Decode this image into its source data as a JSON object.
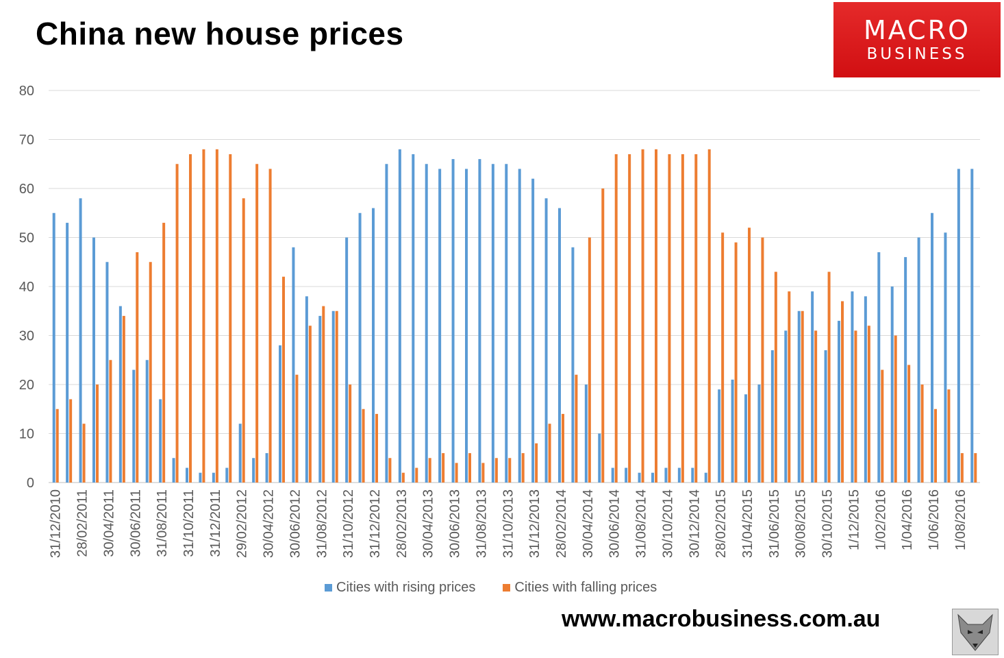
{
  "title": "China new house prices",
  "logo": {
    "line1": "MACRO",
    "line2": "BUSINESS",
    "color": "#d91417"
  },
  "website": "www.macrobusiness.com.au",
  "fox_icon": "fox-head-icon",
  "chart_data": {
    "type": "bar",
    "ylim": [
      0,
      80
    ],
    "yticks": [
      0,
      10,
      20,
      30,
      40,
      50,
      60,
      70,
      80
    ],
    "grid": true,
    "legend_position": "bottom",
    "categories": [
      "31/12/2010",
      "31/01/2011",
      "28/02/2011",
      "31/03/2011",
      "30/04/2011",
      "31/05/2011",
      "30/06/2011",
      "31/07/2011",
      "31/08/2011",
      "30/09/2011",
      "31/10/2011",
      "30/11/2011",
      "31/12/2011",
      "31/01/2012",
      "29/02/2012",
      "31/03/2012",
      "30/04/2012",
      "31/05/2012",
      "30/06/2012",
      "31/07/2012",
      "31/08/2012",
      "30/09/2012",
      "31/10/2012",
      "30/11/2012",
      "31/12/2012",
      "31/01/2013",
      "28/02/2013",
      "31/03/2013",
      "30/04/2013",
      "31/05/2013",
      "30/06/2013",
      "31/07/2013",
      "31/08/2013",
      "30/09/2013",
      "31/10/2013",
      "30/11/2013",
      "31/12/2013",
      "31/01/2014",
      "28/02/2014",
      "31/03/2014",
      "30/04/2014",
      "31/05/2014",
      "30/06/2014",
      "31/07/2014",
      "31/08/2014",
      "30/09/2014",
      "31/10/2014",
      "30/11/2014",
      "31/12/2014",
      "31/01/2015",
      "28/02/2015",
      "31/03/2015",
      "31/04/2015",
      "31/05/2015",
      "31/06/2015",
      "31/07/2015",
      "30/08/2015",
      "30/09/2015",
      "30/10/2015",
      "31/11/2015",
      "1/12/2015",
      "1/01/2016",
      "1/02/2016",
      "1/03/2016",
      "1/04/2016",
      "1/05/2016",
      "1/06/2016",
      "1/07/2016",
      "1/08/2016",
      "1/09/2016"
    ],
    "tick_labels": [
      "31/12/2010",
      "28/02/2011",
      "30/04/2011",
      "30/06/2011",
      "31/08/2011",
      "31/10/2011",
      "31/12/2011",
      "29/02/2012",
      "30/04/2012",
      "30/06/2012",
      "31/08/2012",
      "31/10/2012",
      "31/12/2012",
      "28/02/2013",
      "30/04/2013",
      "30/06/2013",
      "31/08/2013",
      "31/10/2013",
      "31/12/2013",
      "28/02/2014",
      "30/04/2014",
      "30/06/2014",
      "31/08/2014",
      "30/10/2014",
      "30/12/2014",
      "28/02/2015",
      "31/04/2015",
      "31/06/2015",
      "30/08/2015",
      "30/10/2015",
      "1/12/2015",
      "1/02/2016",
      "1/04/2016",
      "1/06/2016",
      "1/08/2016"
    ],
    "series": [
      {
        "name": "Cities with rising prices",
        "color": "#5b9bd5",
        "values": [
          55,
          53,
          58,
          50,
          45,
          36,
          23,
          25,
          17,
          5,
          3,
          2,
          2,
          3,
          12,
          5,
          6,
          28,
          48,
          38,
          34,
          35,
          50,
          55,
          56,
          65,
          68,
          67,
          65,
          64,
          66,
          64,
          66,
          65,
          65,
          64,
          62,
          58,
          56,
          48,
          20,
          10,
          3,
          3,
          2,
          2,
          3,
          3,
          3,
          2,
          19,
          21,
          18,
          20,
          27,
          31,
          35,
          39,
          27,
          33,
          39,
          38,
          47,
          40,
          46,
          50,
          55,
          51,
          64,
          64
        ]
      },
      {
        "name": "Cities with falling prices",
        "color": "#ed7d31",
        "values": [
          15,
          17,
          12,
          20,
          25,
          34,
          47,
          45,
          53,
          65,
          67,
          68,
          68,
          67,
          58,
          65,
          64,
          42,
          22,
          32,
          36,
          35,
          20,
          15,
          14,
          5,
          2,
          3,
          5,
          6,
          4,
          6,
          4,
          5,
          5,
          6,
          8,
          12,
          14,
          22,
          50,
          60,
          67,
          67,
          68,
          68,
          67,
          67,
          67,
          68,
          51,
          49,
          52,
          50,
          43,
          39,
          35,
          31,
          43,
          37,
          31,
          32,
          23,
          30,
          24,
          20,
          15,
          19,
          6,
          6
        ]
      }
    ]
  }
}
